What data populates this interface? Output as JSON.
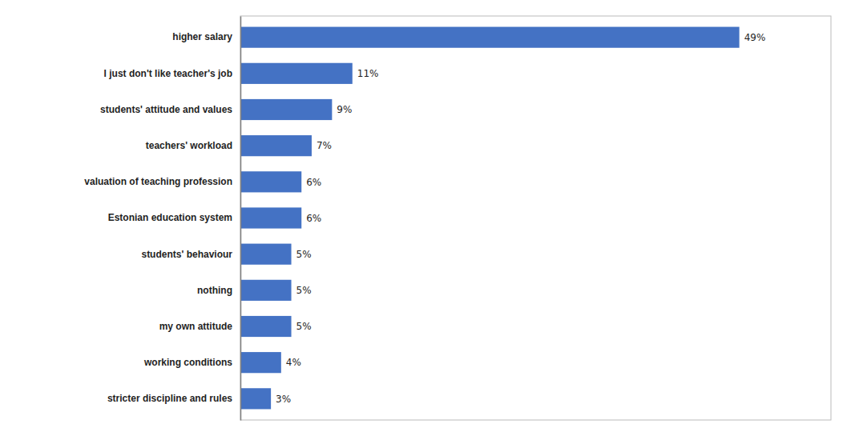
{
  "chart_data": {
    "type": "bar",
    "orientation": "horizontal",
    "categories": [
      "stricter discipline and rules",
      "working conditions",
      "my own attitude",
      "nothing",
      "students' behaviour",
      "Estonian education system",
      "valuation of teaching profession",
      "teachers' workload",
      "students' attitude and values",
      "I just don't like teacher's job",
      "higher salary"
    ],
    "values": [
      3,
      4,
      5,
      5,
      5,
      6,
      6,
      7,
      9,
      11,
      49
    ],
    "value_labels": [
      "3%",
      "4%",
      "5%",
      "5%",
      "5%",
      "6%",
      "6%",
      "7%",
      "9%",
      "11%",
      "49%"
    ],
    "color": "#4472C4",
    "xlim": [
      0,
      58
    ],
    "data_labels": true,
    "tick_labels": "y",
    "grid": false
  }
}
